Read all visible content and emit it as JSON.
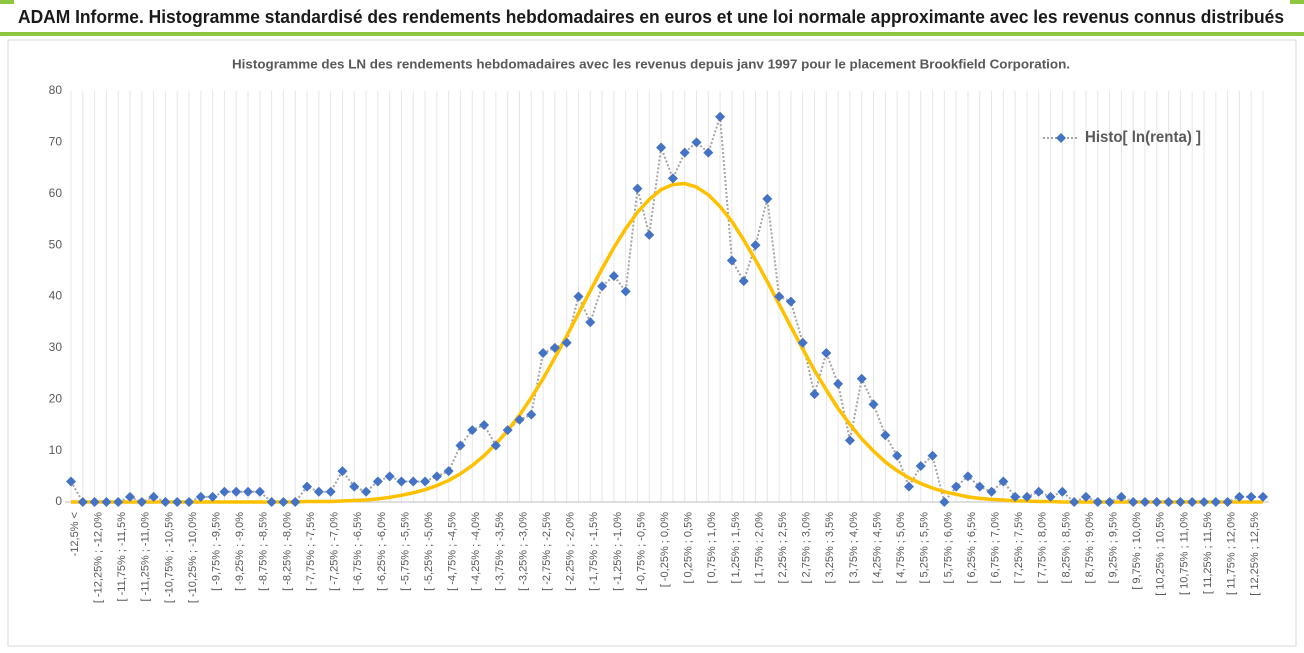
{
  "header": {
    "title": "ADAM Informe. Histogramme standardisé des rendements hebdomadaires en euros et une loi normale approximante avec les revenus connus distribués"
  },
  "chart_data": {
    "type": "line",
    "title": "Histogramme des LN des rendements hebdomadaires avec les revenus depuis janv 1997 pour le placement Brookfield Corporation.",
    "categories": [
      "-12,5% <",
      null,
      "[ -12,25% ; -12,0%",
      null,
      "[ -11,75% ; -11,5%",
      null,
      "[ -11,25% ; -11,0%",
      null,
      "[ -10,75% ; -10,5%",
      null,
      "[ -10,25% ; -10,0%",
      null,
      "[ -9,75% ; -9,5%",
      null,
      "[ -9,25% ; -9,0%",
      null,
      "[ -8,75% ; -8,5%",
      null,
      "[ -8,25% ; -8,0%",
      null,
      "[ -7,75% ; -7,5%",
      null,
      "[ -7,25% ; -7,0%",
      null,
      "[ -6,75% ; -6,5%",
      null,
      "[ -6,25% ; -6,0%",
      null,
      "[ -5,75% ; -5,5%",
      null,
      "[ -5,25% ; -5,0%",
      null,
      "[ -4,75% ; -4,5%",
      null,
      "[ -4,25% ; -4,0%",
      null,
      "[ -3,75% ; -3,5%",
      null,
      "[ -3,25% ; -3,0%",
      null,
      "[ -2,75% ; -2,5%",
      null,
      "[ -2,25% ; -2,0%",
      null,
      "[ -1,75% ; -1,5%",
      null,
      "[ -1,25% ; -1,0%",
      null,
      "[ -0,75% ; -0,5%",
      null,
      "[ -0,25% ; 0,0%",
      null,
      "[ 0,25% ; 0,5%",
      null,
      "[ 0,75% ; 1,0%",
      null,
      "[ 1,25% ; 1,5%",
      null,
      "[ 1,75% ; 2,0%",
      null,
      "[ 2,25% ; 2,5%",
      null,
      "[ 2,75% ; 3,0%",
      null,
      "[ 3,25% ; 3,5%",
      null,
      "[ 3,75% ; 4,0%",
      null,
      "[ 4,25% ; 4,5%",
      null,
      "[ 4,75% ; 5,0%",
      null,
      "[ 5,25% ; 5,5%",
      null,
      "[ 5,75% ; 6,0%",
      null,
      "[ 6,25% ; 6,5%",
      null,
      "[ 6,75% ; 7,0%",
      null,
      "[ 7,25% ; 7,5%",
      null,
      "[ 7,75% ; 8,0%",
      null,
      "[ 8,25% ; 8,5%",
      null,
      "[ 8,75% ; 9,0%",
      null,
      "[ 9,25% ; 9,5%",
      null,
      "[ 9,75% ; 10,0%",
      null,
      "[ 10,25% ; 10,5%",
      null,
      "[ 10,75% ; 11,0%",
      null,
      "[ 11,25% ; 11,5%",
      null,
      "[ 11,75% ; 12,0%",
      null,
      "[ 12,25% ; 12,5%",
      null
    ],
    "series": [
      {
        "name": "Histo[ ln(renta) ]",
        "color": "#4472c4",
        "line_color": "#a5a5a5",
        "values": [
          4,
          0,
          0,
          0,
          0,
          1,
          0,
          1,
          0,
          0,
          0,
          1,
          1,
          2,
          2,
          2,
          2,
          0,
          0,
          0,
          3,
          2,
          2,
          6,
          3,
          2,
          4,
          5,
          4,
          4,
          4,
          5,
          6,
          11,
          14,
          15,
          11,
          14,
          16,
          17,
          29,
          30,
          31,
          40,
          35,
          42,
          44,
          41,
          61,
          52,
          69,
          63,
          68,
          70,
          68,
          75,
          47,
          43,
          50,
          59,
          40,
          39,
          31,
          21,
          29,
          23,
          12,
          24,
          19,
          13,
          9,
          3,
          7,
          9,
          0,
          3,
          5,
          3,
          2,
          4,
          1,
          1,
          2,
          1,
          2,
          0,
          1,
          0,
          0,
          1,
          0,
          0,
          0,
          0,
          0,
          0,
          0,
          0,
          0,
          1,
          1,
          1
        ]
      }
    ],
    "normal_curve": {
      "color": "#ffc000",
      "values": [
        0,
        0,
        0,
        0,
        0,
        0,
        0,
        0,
        0,
        0,
        0,
        0,
        0,
        0,
        0,
        0,
        0,
        0,
        0,
        0,
        0.1,
        0.1,
        0.1,
        0.2,
        0.3,
        0.4,
        0.6,
        0.9,
        1.3,
        1.8,
        2.4,
        3.2,
        4.2,
        5.5,
        7.1,
        9.0,
        11.3,
        13.9,
        16.9,
        20.3,
        24.0,
        28.1,
        32.3,
        36.7,
        41.1,
        45.4,
        49.5,
        53.2,
        56.4,
        58.9,
        60.8,
        61.8,
        62.0,
        61.3,
        59.8,
        57.5,
        54.6,
        51.0,
        47.1,
        42.9,
        38.5,
        34.1,
        29.8,
        25.6,
        21.8,
        18.2,
        15.1,
        12.3,
        9.9,
        7.8,
        6.1,
        4.7,
        3.6,
        2.7,
        2.0,
        1.5,
        1.0,
        0.7,
        0.5,
        0.4,
        0.2,
        0.2,
        0.1,
        0.1,
        0,
        0,
        0,
        0,
        0,
        0,
        0,
        0,
        0,
        0,
        0,
        0,
        0,
        0,
        0,
        0,
        0,
        0
      ]
    },
    "ylim": [
      0,
      80
    ],
    "yticks": [
      0,
      10,
      20,
      30,
      40,
      50,
      60,
      70,
      80
    ],
    "xgrid": true,
    "legend": "top-right"
  }
}
